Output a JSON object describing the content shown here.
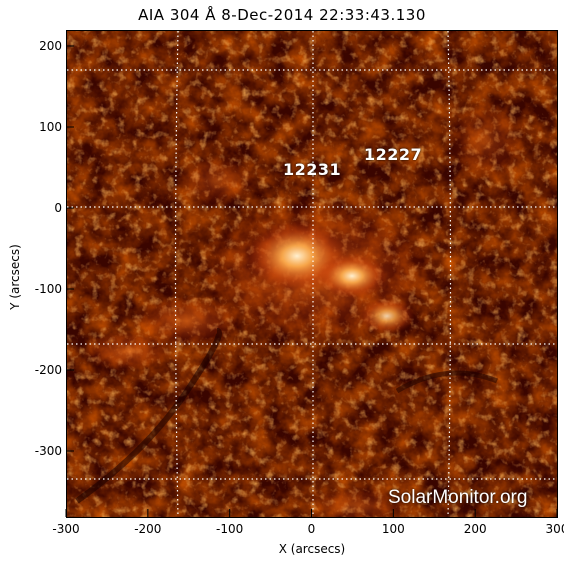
{
  "title": "AIA 304 Å   8-Dec-2014 22:33:43.130",
  "xlabel": "X (arcsecs)",
  "ylabel": "Y (arcsecs)",
  "watermark": "SolarMonitor.org",
  "regions": [
    {
      "label": "12231"
    },
    {
      "label": "12227"
    }
  ],
  "x_ticks": [
    "-300",
    "-200",
    "-100",
    "0",
    "100",
    "200",
    "300"
  ],
  "y_ticks": [
    "200",
    "100",
    "0",
    "-100",
    "-200",
    "-300"
  ],
  "colors": {
    "deep": "#1a0000",
    "dark": "#5a0a00",
    "mid": "#a82a05",
    "bright": "#f07a20",
    "hot": "#ffe0b0"
  }
}
